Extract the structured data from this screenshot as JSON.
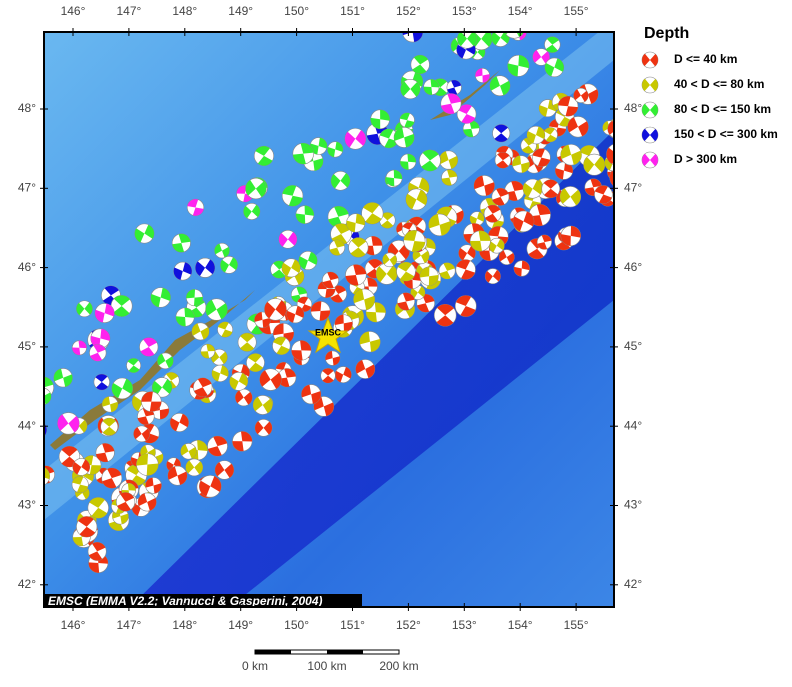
{
  "map": {
    "lon_ticks": [
      "146°",
      "147°",
      "148°",
      "149°",
      "150°",
      "151°",
      "152°",
      "153°",
      "154°",
      "155°"
    ],
    "lat_ticks": [
      "48°",
      "47°",
      "46°",
      "45°",
      "44°",
      "43°",
      "42°"
    ],
    "epicenter_label": "EMSC",
    "credit": "EMSC (EMMA V2.2; Vannucci & Gasperini, 2004)",
    "scale_labels": [
      "0 km",
      "100 km",
      "200 km"
    ]
  },
  "legend": {
    "title": "Depth",
    "items": [
      {
        "label": "D <= 40 km",
        "color": "#ee3311"
      },
      {
        "label": "40 < D <= 80 km",
        "color": "#c8c800"
      },
      {
        "label": "80 < D <= 150 km",
        "color": "#33ee33"
      },
      {
        "label": "150 < D <= 300 km",
        "color": "#1010dd"
      },
      {
        "label": "D > 300 km",
        "color": "#ff22ee"
      }
    ]
  }
}
